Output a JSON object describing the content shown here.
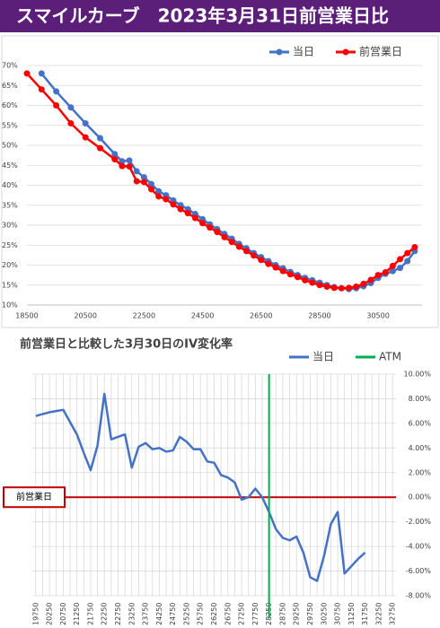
{
  "header": {
    "title": "スマイルカーブ　2023年3月31日前営業日比"
  },
  "chart_data": [
    {
      "type": "line",
      "grid": true,
      "x": [
        18500,
        19000,
        19500,
        20000,
        20500,
        21000,
        21500,
        21750,
        22000,
        22250,
        22500,
        22750,
        23000,
        23250,
        23500,
        23750,
        24000,
        24250,
        24500,
        24750,
        25000,
        25250,
        25500,
        25750,
        26000,
        26250,
        26500,
        26750,
        27000,
        27250,
        27500,
        27750,
        28000,
        28250,
        28500,
        28750,
        29000,
        29250,
        29500,
        29750,
        30000,
        30250,
        30500,
        30750,
        31000,
        31250,
        31500,
        31750
      ],
      "series": [
        {
          "name": "当日",
          "color": "#4472c4",
          "values": [
            null,
            68,
            63.5,
            59.5,
            55.5,
            51.8,
            47.8,
            46.0,
            46.2,
            43.5,
            42.0,
            40.3,
            38.5,
            37.5,
            36.2,
            35.0,
            34.0,
            32.8,
            31.5,
            30.2,
            29.0,
            27.8,
            26.6,
            25.3,
            24.2,
            23.0,
            22.0,
            21.0,
            20.0,
            19.2,
            18.3,
            17.5,
            16.8,
            16.2,
            15.6,
            15.0,
            14.5,
            14.2,
            14.0,
            14.2,
            14.7,
            15.5,
            16.8,
            17.8,
            18.5,
            19.3,
            21.0,
            23.5
          ]
        },
        {
          "name": "前営業日",
          "color": "#ff0000",
          "values": [
            68,
            64,
            60,
            55.5,
            52,
            49.3,
            46.5,
            44.8,
            44.7,
            41.0,
            40.8,
            39.0,
            37.2,
            36.5,
            35.2,
            34.0,
            33.0,
            31.8,
            30.5,
            29.4,
            28.3,
            27.0,
            25.8,
            24.6,
            23.5,
            22.4,
            21.3,
            20.3,
            19.4,
            18.5,
            17.7,
            17.0,
            16.2,
            15.6,
            15.0,
            14.6,
            14.3,
            14.2,
            14.3,
            14.6,
            15.3,
            16.3,
            17.5,
            18.2,
            19.8,
            21.5,
            23.0,
            24.5
          ]
        }
      ],
      "xlim": [
        18500,
        32000
      ],
      "xticks": [
        18500,
        20500,
        22500,
        24500,
        26500,
        28500,
        30500
      ],
      "ylim": [
        10,
        70
      ],
      "yticks": [
        {
          "value": 10,
          "label": "10%"
        },
        {
          "value": 15,
          "label": "15%"
        },
        {
          "value": 20,
          "label": "20%"
        },
        {
          "value": 25,
          "label": "25%"
        },
        {
          "value": 30,
          "label": "30%"
        },
        {
          "value": 35,
          "label": "35%"
        },
        {
          "value": 40,
          "label": "40%"
        },
        {
          "value": 45,
          "label": "45%"
        },
        {
          "value": 50,
          "label": "50%"
        },
        {
          "value": 55,
          "label": "55%"
        },
        {
          "value": 60,
          "label": "60%"
        },
        {
          "value": 65,
          "label": "65%"
        },
        {
          "value": 70,
          "label": "70%"
        }
      ]
    },
    {
      "type": "line",
      "title": "前営業日と比較した3月30日のIV変化率",
      "grid": true,
      "y_axis_side": "right",
      "x": [
        19750,
        20000,
        20250,
        20500,
        20750,
        21000,
        21250,
        21500,
        21750,
        22000,
        22250,
        22500,
        22750,
        23000,
        23250,
        23500,
        23750,
        24000,
        24250,
        24500,
        24750,
        25000,
        25250,
        25500,
        25750,
        26000,
        26250,
        26500,
        26750,
        27000,
        27250,
        27500,
        27750,
        28000,
        28250,
        28500,
        28750,
        29000,
        29250,
        29500,
        29750,
        30000,
        30250,
        30500,
        30750,
        31000,
        31250,
        31500,
        31750,
        32000,
        32250,
        32500,
        32750
      ],
      "series": [
        {
          "name": "当日",
          "color": "#4472c4",
          "values": [
            6.6,
            6.75,
            6.9,
            7.0,
            7.1,
            6.1,
            5.1,
            3.6,
            2.2,
            4.2,
            8.4,
            4.7,
            4.9,
            5.1,
            2.4,
            4.1,
            4.4,
            3.9,
            4.0,
            3.7,
            3.8,
            4.9,
            4.5,
            3.9,
            3.9,
            2.9,
            2.8,
            1.8,
            1.6,
            1.2,
            -0.2,
            0.0,
            0.7,
            0.0,
            -1.2,
            -2.6,
            -3.3,
            -3.5,
            -3.2,
            -4.5,
            -6.5,
            -6.8,
            -4.8,
            -2.2,
            -1.2,
            -6.2,
            -5.6,
            -5.0,
            -4.5,
            null,
            null,
            null,
            null
          ]
        }
      ],
      "reference_lines": [
        {
          "name": "ATM",
          "color": "#00b050",
          "x": 28250
        }
      ],
      "annotations": [
        {
          "text": "前営業日",
          "y": 0,
          "color": "#c00000"
        }
      ],
      "xlim": [
        19625,
        32875
      ],
      "xticks": [
        19750,
        20250,
        20750,
        21250,
        21750,
        22250,
        22750,
        23250,
        23750,
        24250,
        24750,
        25250,
        25750,
        26250,
        26750,
        27250,
        27750,
        28250,
        28750,
        29250,
        29750,
        30250,
        30750,
        31250,
        31750,
        32250,
        32750
      ],
      "ylim": [
        -8,
        10
      ],
      "yticks": [
        {
          "value": 10,
          "label": "10.00%"
        },
        {
          "value": 8,
          "label": "8.00%"
        },
        {
          "value": 6,
          "label": "6.00%"
        },
        {
          "value": 4,
          "label": "4.00%"
        },
        {
          "value": 2,
          "label": "2.00%"
        },
        {
          "value": 0,
          "label": "0.00%"
        },
        {
          "value": -2,
          "label": "-2.00%"
        },
        {
          "value": -4,
          "label": "-4.00%"
        },
        {
          "value": -6,
          "label": "-6.00%"
        },
        {
          "value": -8,
          "label": "-8.00%"
        }
      ]
    }
  ]
}
